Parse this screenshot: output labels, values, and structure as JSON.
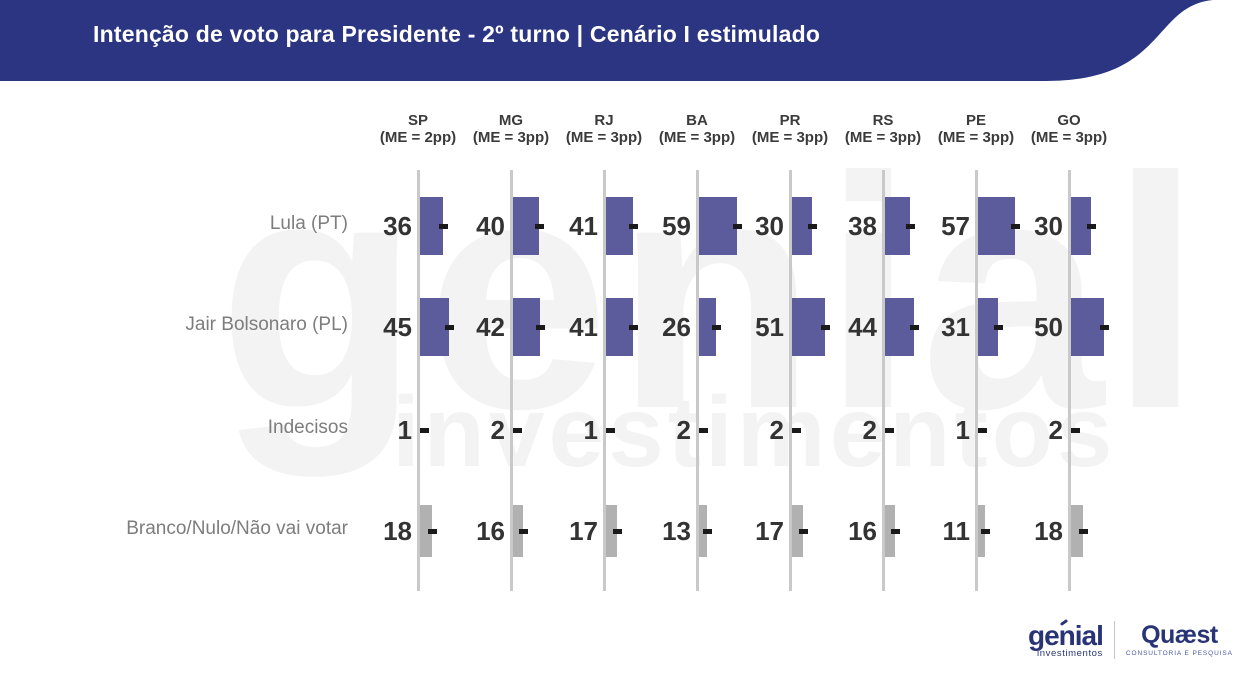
{
  "header": {
    "title": "Intenção de voto para Presidente - 2º turno | Cenário I estimulado"
  },
  "chart_data": {
    "type": "bar",
    "orientation": "horizontal",
    "unit": "percent",
    "title": "Intenção de voto para Presidente - 2º turno | Cenário I estimulado",
    "xlim": [
      0,
      100
    ],
    "columns": [
      {
        "state": "SP",
        "margin_of_error": "(ME = 2pp)"
      },
      {
        "state": "MG",
        "margin_of_error": "(ME = 3pp)"
      },
      {
        "state": "RJ",
        "margin_of_error": "(ME = 3pp)"
      },
      {
        "state": "BA",
        "margin_of_error": "(ME = 3pp)"
      },
      {
        "state": "PR",
        "margin_of_error": "(ME = 3pp)"
      },
      {
        "state": "RS",
        "margin_of_error": "(ME = 3pp)"
      },
      {
        "state": "PE",
        "margin_of_error": "(ME = 3pp)"
      },
      {
        "state": "GO",
        "margin_of_error": "(ME = 3pp)"
      }
    ],
    "rows": [
      {
        "label": "Lula (PT)",
        "bar_color": "#5c5b9b",
        "values": [
          36,
          40,
          41,
          59,
          30,
          38,
          57,
          30
        ]
      },
      {
        "label": "Jair Bolsonaro (PL)",
        "bar_color": "#5c5b9b",
        "values": [
          45,
          42,
          41,
          26,
          51,
          44,
          31,
          50
        ]
      },
      {
        "label": "Indecisos",
        "bar_color": null,
        "values": [
          1,
          2,
          1,
          2,
          2,
          2,
          1,
          2
        ]
      },
      {
        "label": "Branco/Nulo/Não vai votar",
        "bar_color": "#b1b1b1",
        "values": [
          18,
          16,
          17,
          13,
          17,
          16,
          11,
          18
        ]
      }
    ]
  },
  "watermark": {
    "word1": "genial",
    "word2": "investimentos"
  },
  "footer": {
    "genial_name": "genial",
    "genial_sub": "investimentos",
    "quaest_name": "Quæst",
    "quaest_tagline": "CONSULTORIA E PESQUISA"
  },
  "colors": {
    "banner": "#2b3582",
    "bar_purple": "#5c5b9b",
    "bar_gray": "#b1b1b1",
    "axis_line": "#c9c9c9",
    "marker": "#1a1a1a"
  }
}
